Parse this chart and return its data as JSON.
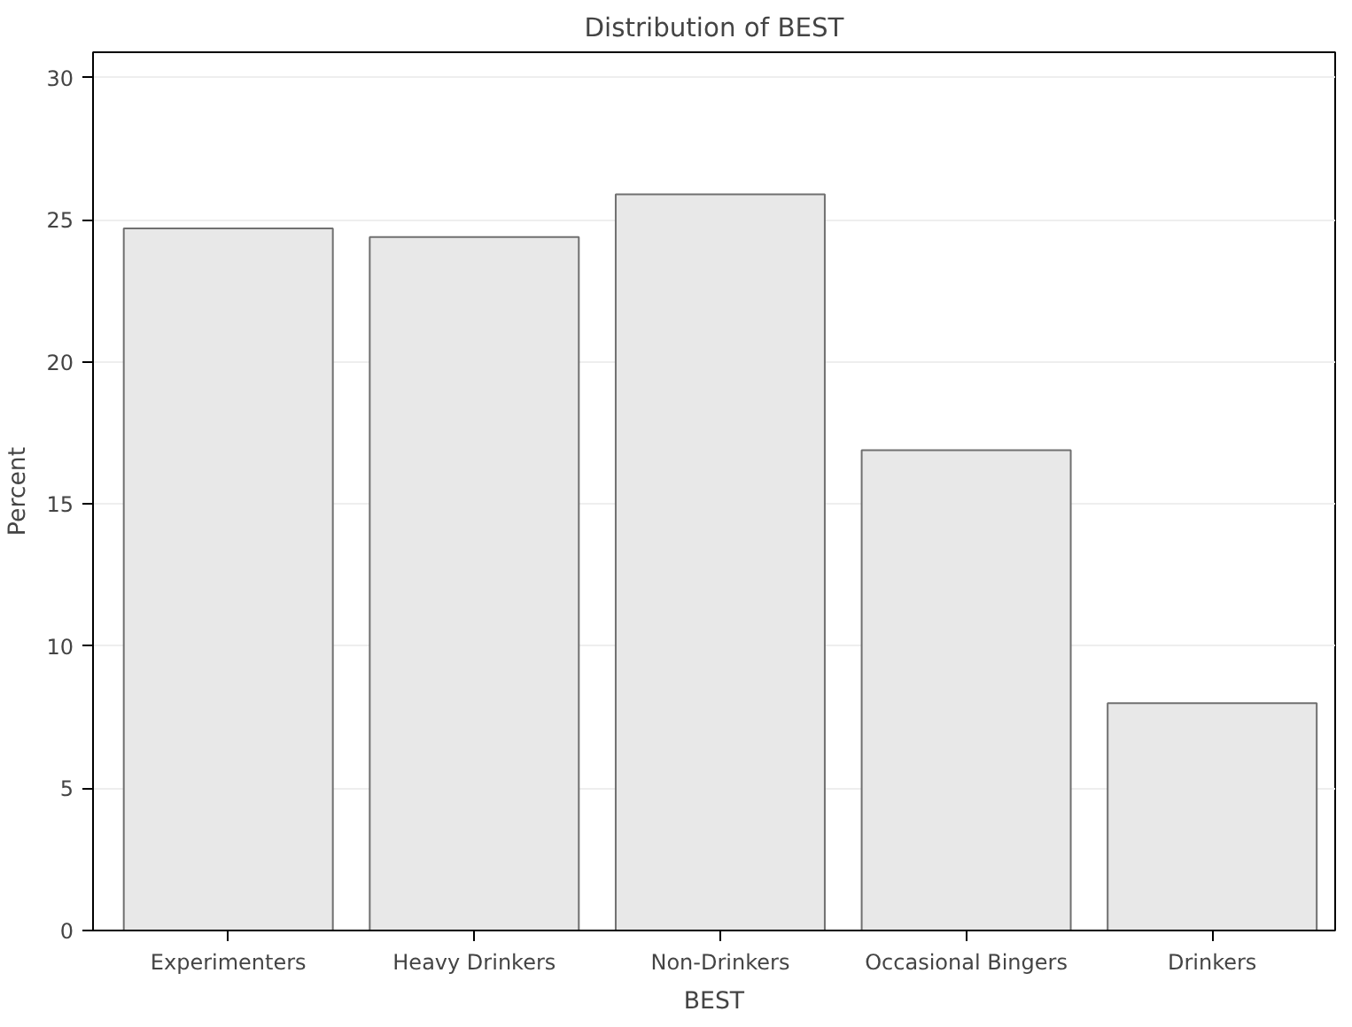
{
  "chart_data": {
    "type": "bar",
    "title": "Distribution of BEST",
    "xlabel": "BEST",
    "ylabel": "Percent",
    "categories": [
      "Experimenters",
      "Heavy Drinkers",
      "Non-Drinkers",
      "Occasional Bingers",
      "Drinkers"
    ],
    "values": [
      24.7,
      24.4,
      25.9,
      16.9,
      8.0
    ],
    "color": "#e8e8e8",
    "ylim": [
      0,
      30.9
    ],
    "yticks": [
      0,
      5,
      10,
      15,
      20,
      25,
      30
    ],
    "grid": "y"
  }
}
